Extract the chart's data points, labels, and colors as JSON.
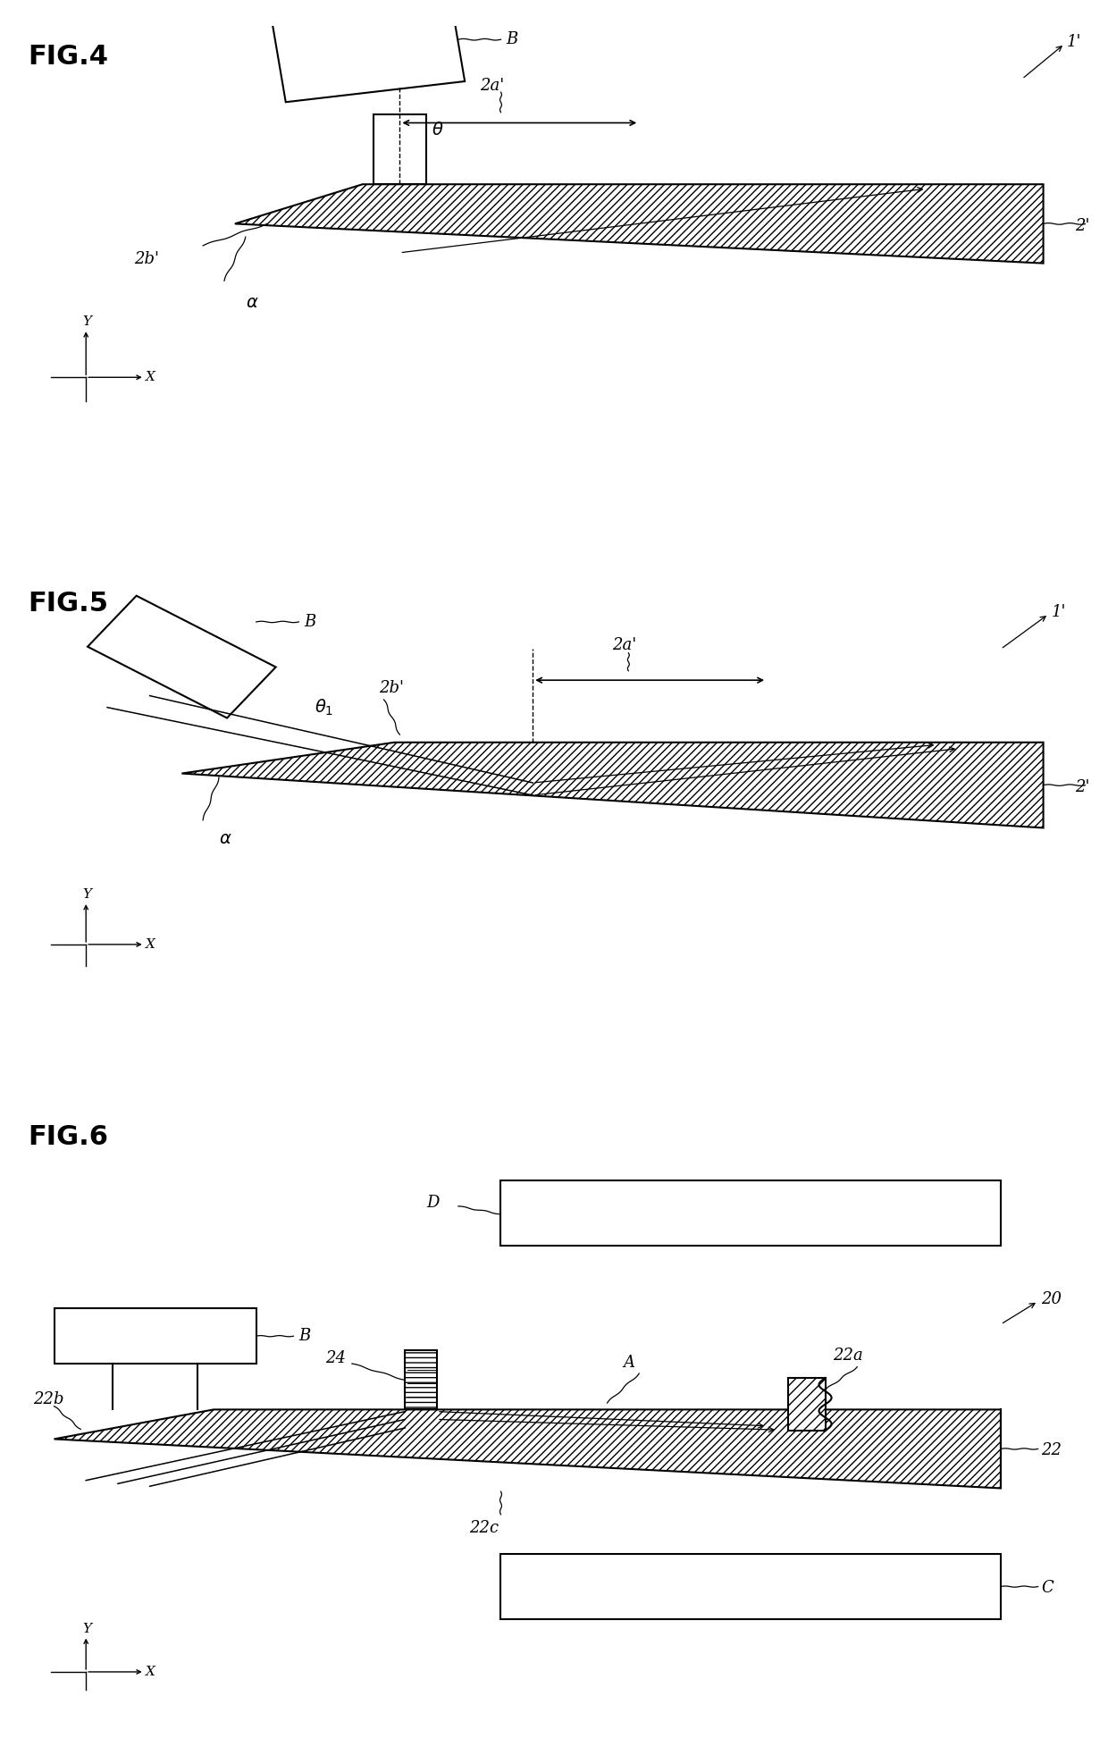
{
  "bg_color": "#ffffff",
  "lw_main": 1.5,
  "lw_thin": 0.9,
  "fs_title": 22,
  "fs_label": 13,
  "fs_greek": 14,
  "hatch": "////",
  "fig4_title": "FIG.4",
  "fig5_title": "FIG.5",
  "fig6_title": "FIG.6"
}
